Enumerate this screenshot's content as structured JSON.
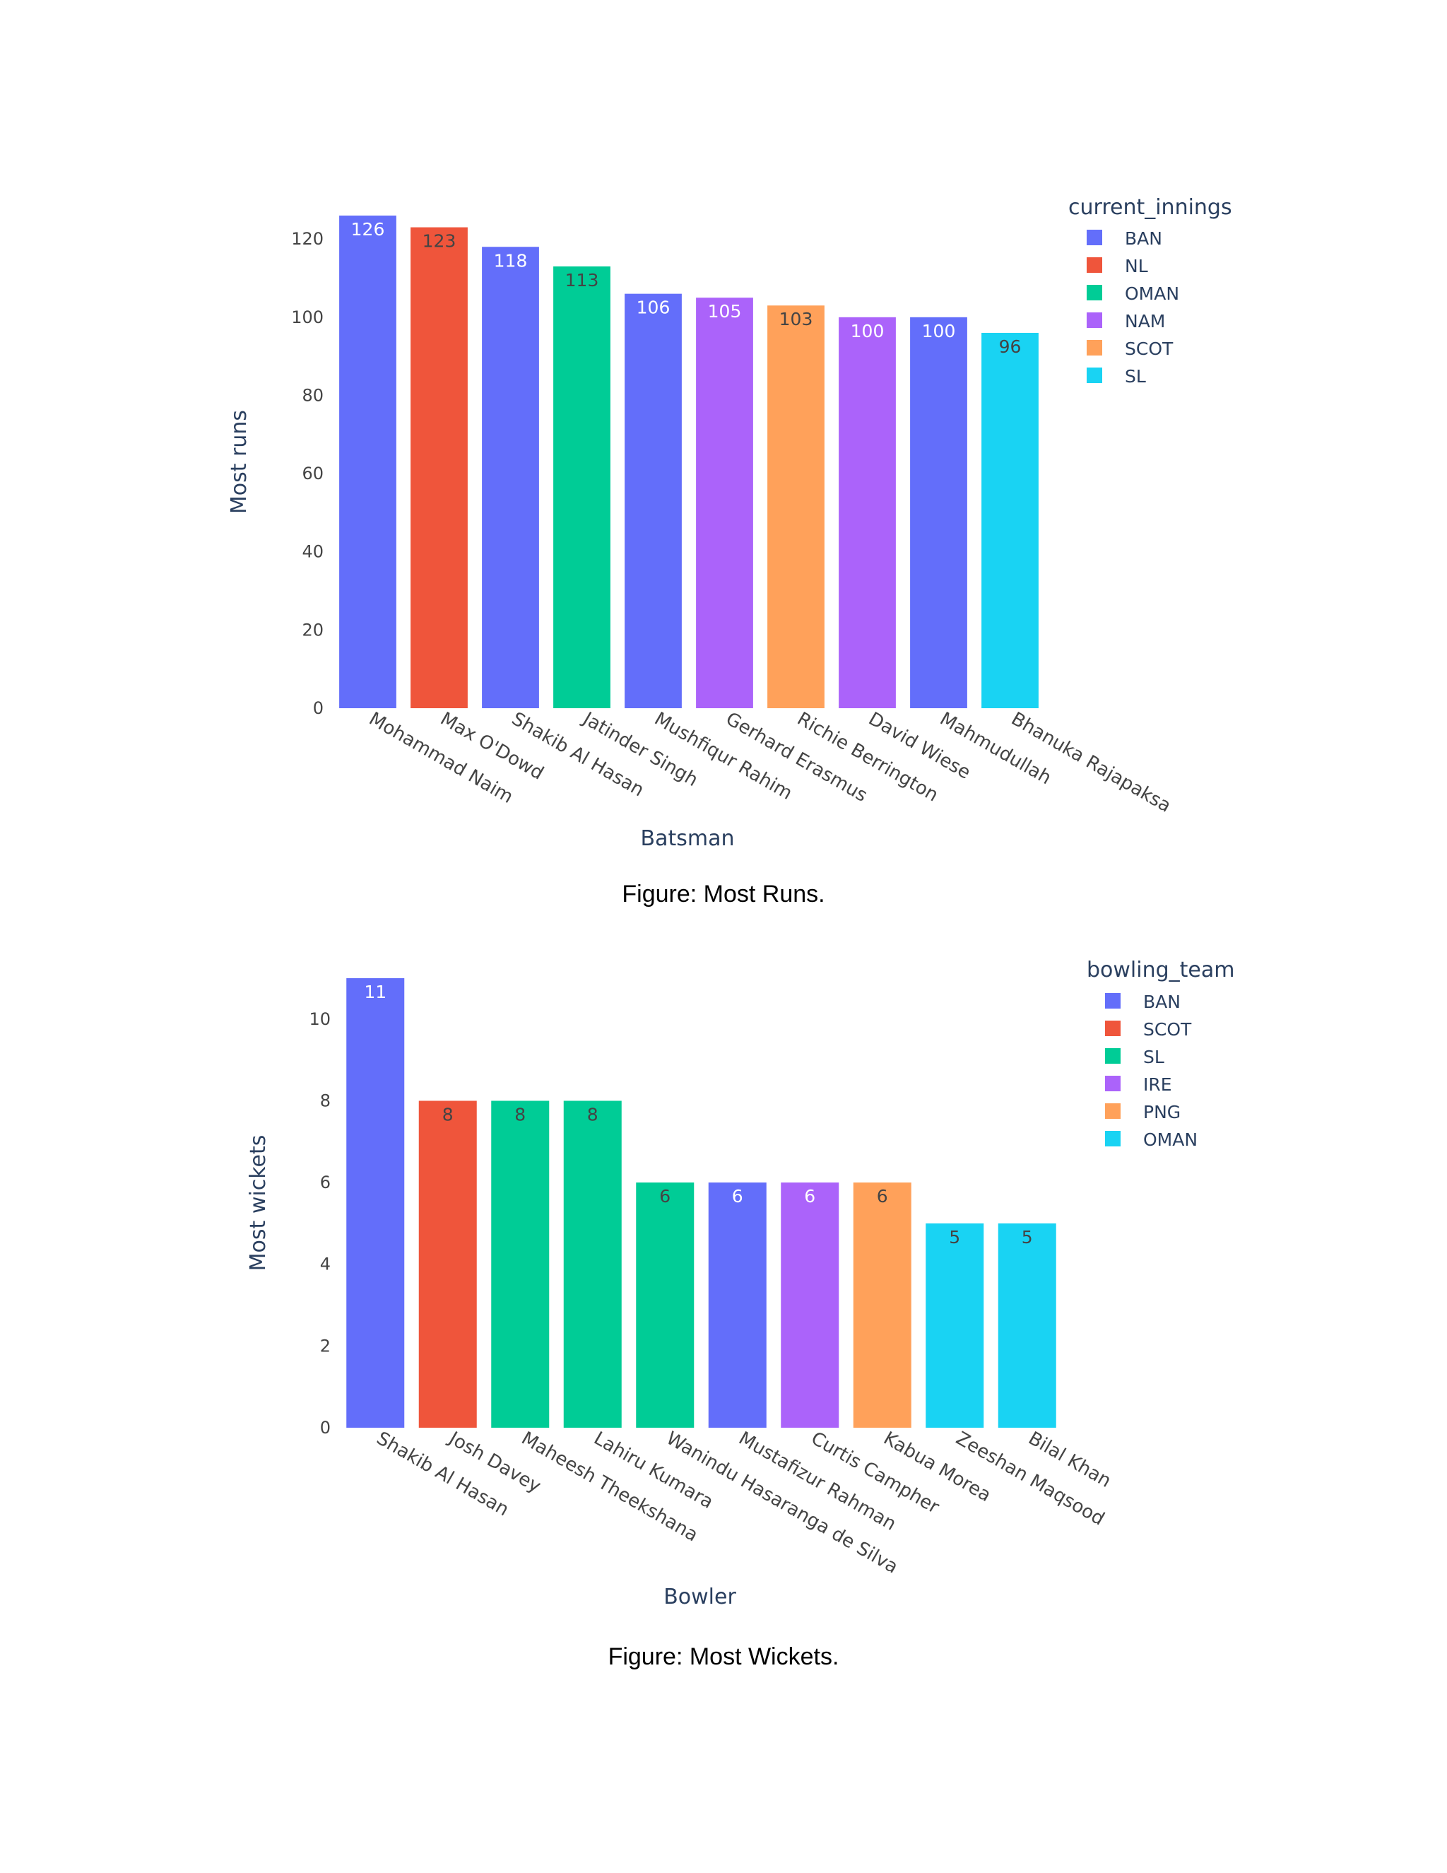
{
  "chart_data": [
    {
      "type": "bar",
      "caption": "Figure: Most Runs.",
      "xlabel": "Batsman",
      "ylabel": "Most runs",
      "ylim": [
        0,
        126
      ],
      "yticks": [
        0,
        20,
        40,
        60,
        80,
        100,
        120
      ],
      "categories": [
        "Mohammad Naim",
        "Max O'Dowd",
        "Shakib Al Hasan",
        "Jatinder Singh",
        "Mushfiqur Rahim",
        "Gerhard Erasmus",
        "Richie Berrington",
        "David Wiese",
        "Mahmudullah",
        "Bhanuka Rajapaksa"
      ],
      "values": [
        126,
        123,
        118,
        113,
        106,
        105,
        103,
        100,
        100,
        96
      ],
      "bar_groups": [
        "BAN",
        "NL",
        "BAN",
        "OMAN",
        "BAN",
        "NAM",
        "SCOT",
        "NAM",
        "BAN",
        "SL"
      ],
      "legend": {
        "title": "current_innings",
        "placement": "top-right",
        "items": [
          {
            "name": "BAN",
            "color": "#636efa"
          },
          {
            "name": "NL",
            "color": "#ef553b"
          },
          {
            "name": "OMAN",
            "color": "#00cc96"
          },
          {
            "name": "NAM",
            "color": "#ab63fa"
          },
          {
            "name": "SCOT",
            "color": "#ffa15a"
          },
          {
            "name": "SL",
            "color": "#19d3f3"
          }
        ]
      },
      "grid": false
    },
    {
      "type": "bar",
      "caption": "Figure: Most Wickets.",
      "xlabel": "Bowler",
      "ylabel": "Most wickets",
      "ylim": [
        0,
        11
      ],
      "yticks": [
        0,
        2,
        4,
        6,
        8,
        10
      ],
      "categories": [
        "Shakib Al Hasan",
        "Josh Davey",
        "Maheesh Theekshana",
        "Lahiru Kumara",
        "Wanindu Hasaranga de Silva",
        "Mustafizur Rahman",
        "Curtis Campher",
        "Kabua Morea",
        "Zeeshan Maqsood",
        "Bilal Khan"
      ],
      "values": [
        11,
        8,
        8,
        8,
        6,
        6,
        6,
        6,
        5,
        5
      ],
      "bar_groups": [
        "BAN",
        "SCOT",
        "SL",
        "SL",
        "SL",
        "BAN",
        "IRE",
        "PNG",
        "OMAN",
        "OMAN"
      ],
      "legend": {
        "title": "bowling_team",
        "placement": "top-right",
        "items": [
          {
            "name": "BAN",
            "color": "#636efa"
          },
          {
            "name": "SCOT",
            "color": "#ef553b"
          },
          {
            "name": "SL",
            "color": "#00cc96"
          },
          {
            "name": "IRE",
            "color": "#ab63fa"
          },
          {
            "name": "PNG",
            "color": "#ffa15a"
          },
          {
            "name": "OMAN",
            "color": "#19d3f3"
          }
        ]
      },
      "grid": false
    }
  ]
}
